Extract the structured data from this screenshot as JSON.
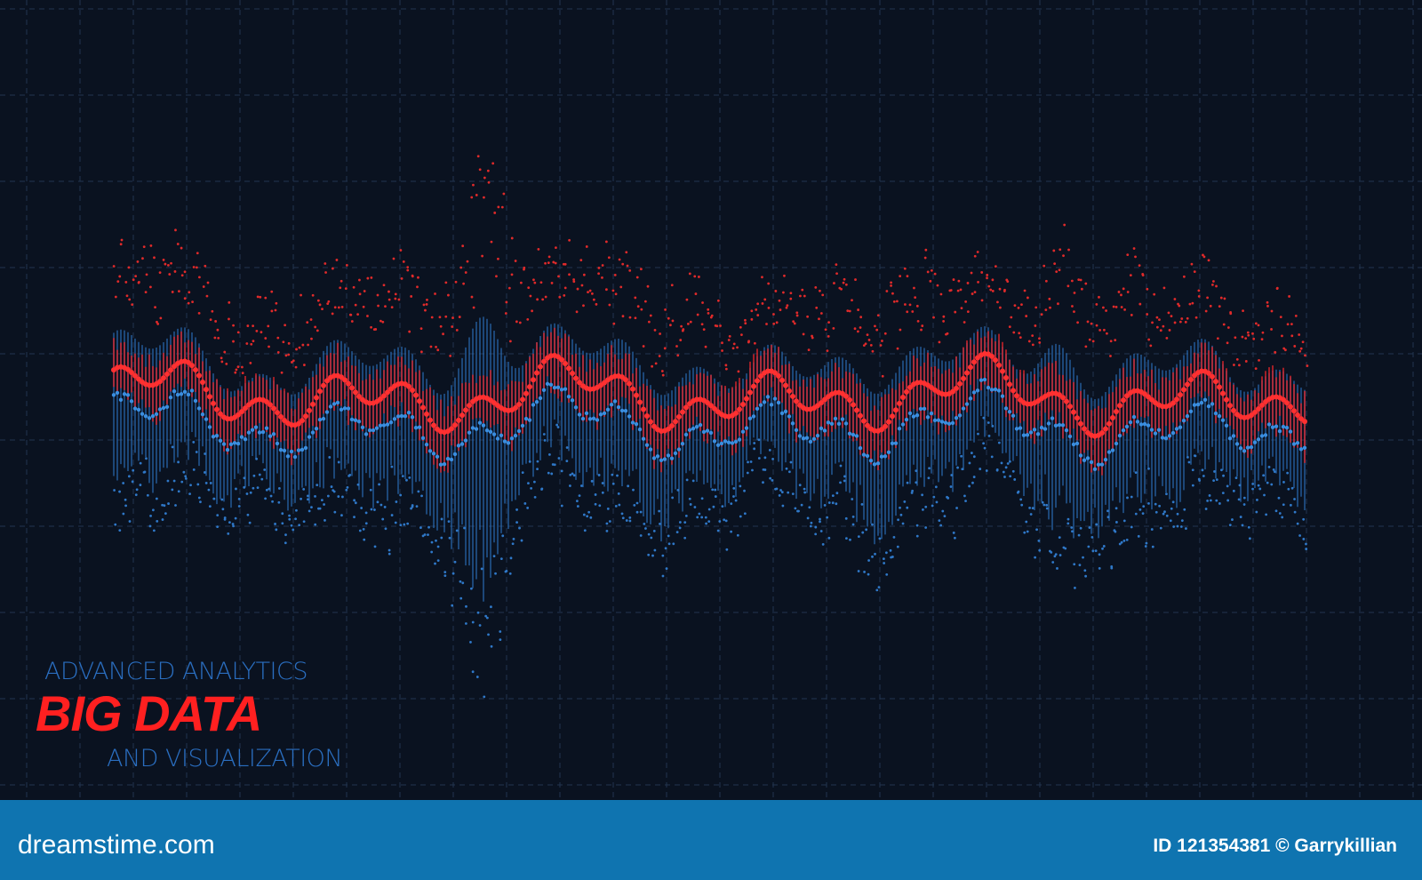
{
  "visual": {
    "subtitle_top": "ADVANCED ANALYTICS",
    "title": "BIG DATA",
    "subtitle_bottom": "AND VISUALIZATION"
  },
  "footer": {
    "site": "dreamstime.com",
    "credit": "ID 121354381 © Garrykillian"
  }
}
